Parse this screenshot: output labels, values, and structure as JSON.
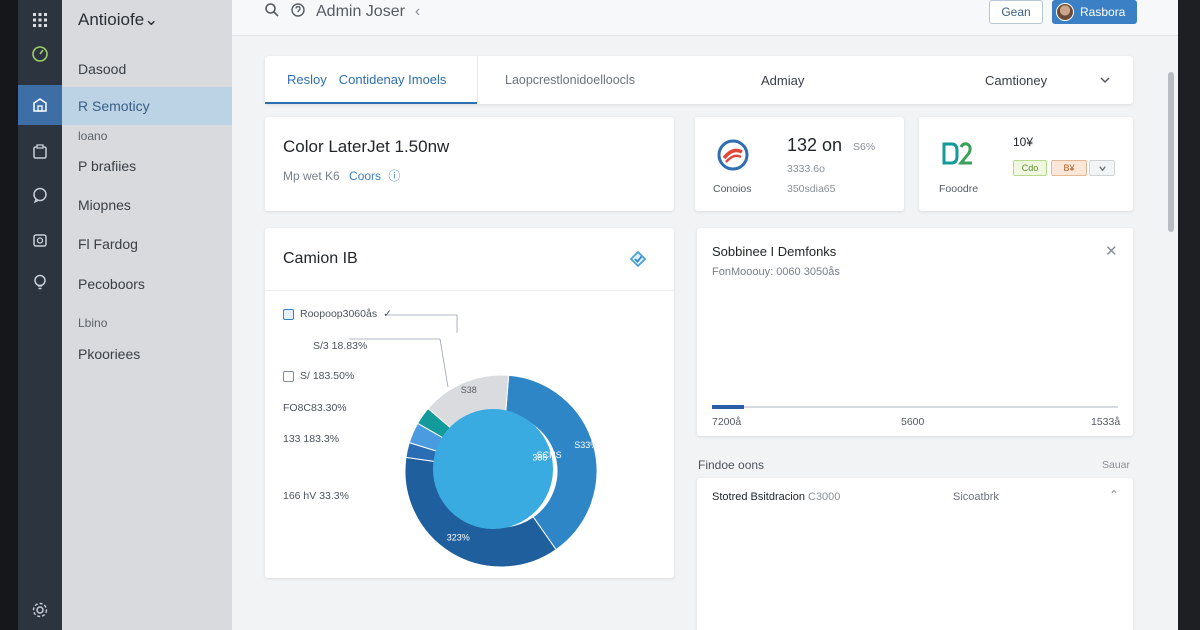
{
  "rail": {
    "items": [
      {
        "icon": "grid-icon"
      },
      {
        "icon": "gauge-icon"
      },
      {
        "icon": "building-icon",
        "active": true
      },
      {
        "icon": "clipboard-icon"
      },
      {
        "icon": "chat-icon"
      },
      {
        "icon": "camera-icon"
      },
      {
        "icon": "lightbulb-icon"
      },
      {
        "icon": "settings-icon"
      }
    ]
  },
  "nav": {
    "title": "Antioiofe⌄",
    "items": [
      {
        "label": "Dasood",
        "type": "item"
      },
      {
        "label": "R Semoticy",
        "type": "item",
        "active": true
      },
      {
        "label": "loano",
        "type": "section"
      },
      {
        "label": "P brafiies",
        "type": "item"
      },
      {
        "label": "Miopnes",
        "type": "item"
      },
      {
        "label": "Fl Fardog",
        "type": "item"
      },
      {
        "label": "Pecoboors",
        "type": "item"
      },
      {
        "label": "Lbino",
        "type": "section"
      },
      {
        "label": "Pkooriees",
        "type": "item"
      }
    ]
  },
  "topbar": {
    "title": "Admin Joser",
    "btn_ghost": "Gean",
    "btn_user": "Rasbora"
  },
  "tabs": {
    "items": [
      "Resloy",
      "Contidenay Imoels",
      "Laopcrestlonidoelloocls",
      "Admiay",
      "Camtioney"
    ]
  },
  "product": {
    "title": "Color LaterJet  1.50nw",
    "meta": "Mp wet K6",
    "link": "Coors"
  },
  "stat1": {
    "value": "132 on",
    "badge": "S6%",
    "sub1": "3333.6o",
    "caption": "Conoios",
    "sub2": "350sdia65"
  },
  "stat2": {
    "top": "10¥",
    "caption": "Fooodre",
    "chip_a": "Cdo",
    "chip_b": "B¥"
  },
  "pie": {
    "title": "Camion IB",
    "legend": [
      {
        "label": "Roopoop3060ås",
        "box": "checked",
        "check": true
      },
      {
        "label": "S/3 18.83%",
        "box": "none"
      },
      {
        "label": "S/ 183.50%",
        "box": "plain"
      },
      {
        "label": "FO8C83.30%",
        "box": "none"
      },
      {
        "label": "133 183.3%",
        "box": "none"
      },
      {
        "label": "166 hV 33.3%",
        "box": "none"
      }
    ]
  },
  "chart_data": {
    "type": "pie",
    "title": "Camion IB",
    "slices": [
      {
        "value": 39,
        "color": "#2e86c6"
      },
      {
        "value": 37,
        "color": "#1f5f9e"
      },
      {
        "value": 2.5,
        "color": "#2a6db4"
      },
      {
        "value": 3.5,
        "color": "#4a9be0"
      },
      {
        "value": 3,
        "color": "#139a9b"
      },
      {
        "value": 15,
        "color": "#d9dbde"
      }
    ],
    "center_color": "#3aabe0",
    "data_labels": [
      {
        "text": "SCHS",
        "slice": 0,
        "rf": 0.52
      },
      {
        "text": "388",
        "slice": 0,
        "rf": 0.42
      },
      {
        "text": "S38",
        "slice": 5,
        "rf": 0.88
      },
      {
        "text": "323%",
        "slice": 1,
        "rf": 0.85
      },
      {
        "text": "S33%",
        "slice": 0,
        "rf": 0.92
      }
    ]
  },
  "range": {
    "title": "Sobbinee I Demfonks",
    "sub": "FonMooouy: 0060 3050ås",
    "min": "7200å",
    "mid": "5600",
    "max": "1533å",
    "value_fraction": 0.08
  },
  "section": {
    "label": "Findoe oons",
    "link": "Sauar"
  },
  "list": {
    "title": "Stotred Bsitdracion",
    "title_muted": "C3000",
    "meta": "Sicoatbrk"
  }
}
